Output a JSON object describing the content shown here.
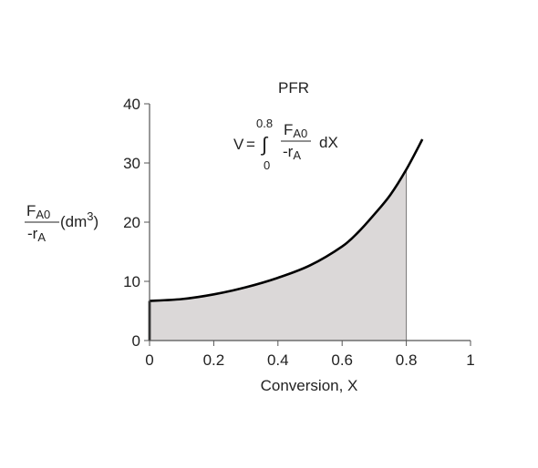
{
  "chart_data": {
    "type": "area",
    "title": "PFR",
    "equation": {
      "lhs": "V",
      "eq": "=",
      "integral": "∫",
      "upper_limit": "0.8",
      "lower_limit": "0",
      "numerator_main": "F",
      "numerator_sub": "A0",
      "denominator_main": "-r",
      "denominator_sub": "A",
      "differential": "dX"
    },
    "xlabel": "Conversion, X",
    "ylabel": {
      "numerator_main": "F",
      "numerator_sub": "A0",
      "denominator_main": "-r",
      "denominator_sub": "A",
      "unit_prefix": "(dm",
      "unit_sup": "3",
      "unit_suffix": ")"
    },
    "xlim": [
      0,
      1
    ],
    "ylim": [
      0,
      40
    ],
    "x_ticks": [
      "0",
      "0.2",
      "0.4",
      "0.6",
      "0.8",
      "1"
    ],
    "y_ticks": [
      "0",
      "10",
      "20",
      "30",
      "40"
    ],
    "grid": false,
    "shaded_region": {
      "from": 0,
      "to": 0.8
    },
    "series": [
      {
        "x": [
          0,
          0.1,
          0.2,
          0.3,
          0.4,
          0.5,
          0.6,
          0.65,
          0.7,
          0.75,
          0.8,
          0.85
        ],
        "values": [
          6.7,
          7.0,
          7.8,
          9.0,
          10.6,
          12.7,
          15.9,
          18.3,
          21.3,
          24.6,
          28.9,
          34.0
        ]
      }
    ],
    "colors": {
      "curve": "#000000",
      "fill": "#dbd8d8",
      "axis": "#555555"
    }
  }
}
